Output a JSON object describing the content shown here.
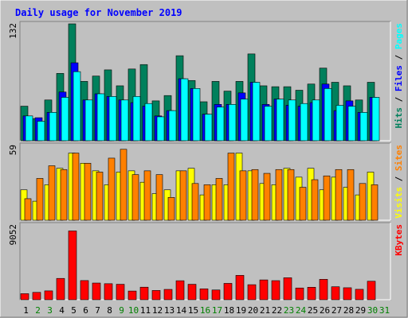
{
  "chart_data": {
    "type": "bar",
    "title": "Daily usage for November 2019",
    "categories": [
      "1",
      "2",
      "3",
      "4",
      "5",
      "6",
      "7",
      "8",
      "9",
      "10",
      "11",
      "12",
      "13",
      "14",
      "15",
      "16",
      "17",
      "18",
      "19",
      "20",
      "21",
      "22",
      "23",
      "24",
      "25",
      "26",
      "27",
      "28",
      "29",
      "30",
      "31"
    ],
    "weekend_days": [
      "2",
      "3",
      "9",
      "10",
      "16",
      "17",
      "23",
      "24",
      "30",
      "31"
    ],
    "panels": [
      {
        "id": "hits-files-pages",
        "ymax_label": "132",
        "ylim": [
          0,
          132
        ],
        "axis_labels": [
          "Pages",
          "Files",
          "Hits"
        ],
        "series": [
          {
            "name": "Hits",
            "color": "#00805C",
            "values": [
              39,
              25,
              46,
              76,
              132,
              67,
              73,
              80,
              62,
              81,
              86,
              45,
              51,
              96,
              68,
              44,
              67,
              56,
              67,
              98,
              62,
              61,
              61,
              57,
              64,
              82,
              66,
              62,
              46,
              66,
              0
            ]
          },
          {
            "name": "Files",
            "color": "#0000FF",
            "values": [
              28,
              26,
              32,
              55,
              88,
              46,
              53,
              50,
              46,
              43,
              39,
              28,
              34,
              70,
              59,
              30,
              41,
              41,
              54,
              66,
              41,
              47,
              40,
              39,
              43,
              64,
              34,
              45,
              32,
              49,
              0
            ]
          },
          {
            "name": "Pages",
            "color": "#00FFFF",
            "values": [
              28,
              22,
              32,
              49,
              78,
              46,
              53,
              50,
              46,
              50,
              42,
              27,
              34,
              70,
              59,
              30,
              38,
              41,
              47,
              66,
              39,
              47,
              46,
              42,
              46,
              59,
              40,
              39,
              32,
              49,
              0
            ]
          }
        ]
      },
      {
        "id": "visits-sites",
        "ymax_label": "59",
        "ylim": [
          0,
          59
        ],
        "axis_labels": [
          "Sites",
          "Visits"
        ],
        "series": [
          {
            "name": "Visits",
            "color": "#FFFF00",
            "values": [
              24,
              15,
              28,
              41,
              53,
              45,
              39,
              28,
              38,
              39,
              30,
              21,
              24,
              39,
              41,
              20,
              28,
              28,
              53,
              39,
              29,
              28,
              41,
              34,
              41,
              24,
              34,
              26,
              20,
              38,
              0
            ]
          },
          {
            "name": "Sites",
            "color": "#FF8000",
            "values": [
              17,
              33,
              43,
              40,
              53,
              45,
              38,
              49,
              56,
              36,
              39,
              36,
              18,
              39,
              29,
              28,
              33,
              53,
              39,
              40,
              37,
              40,
              40,
              26,
              32,
              35,
              40,
              40,
              29,
              28,
              0
            ]
          }
        ]
      },
      {
        "id": "kbytes",
        "ymax_label": "9052",
        "ylim": [
          0,
          9052
        ],
        "axis_labels": [
          "KBytes"
        ],
        "series": [
          {
            "name": "KBytes",
            "color": "#FF0000",
            "values": [
              730,
              890,
              1070,
              2580,
              8330,
              2320,
              2020,
              1940,
              1870,
              1050,
              1520,
              1120,
              1250,
              2300,
              1870,
              1320,
              1180,
              1980,
              2950,
              1820,
              2400,
              2310,
              2660,
              1420,
              1510,
              2470,
              1570,
              1450,
              1260,
              2240,
              0
            ]
          }
        ]
      }
    ]
  },
  "colors": {
    "background": "#C0C0C0",
    "frame_dark": "#808080",
    "title": "#0000FF",
    "weekday_label": "#000000",
    "weekend_label": "#008000"
  }
}
